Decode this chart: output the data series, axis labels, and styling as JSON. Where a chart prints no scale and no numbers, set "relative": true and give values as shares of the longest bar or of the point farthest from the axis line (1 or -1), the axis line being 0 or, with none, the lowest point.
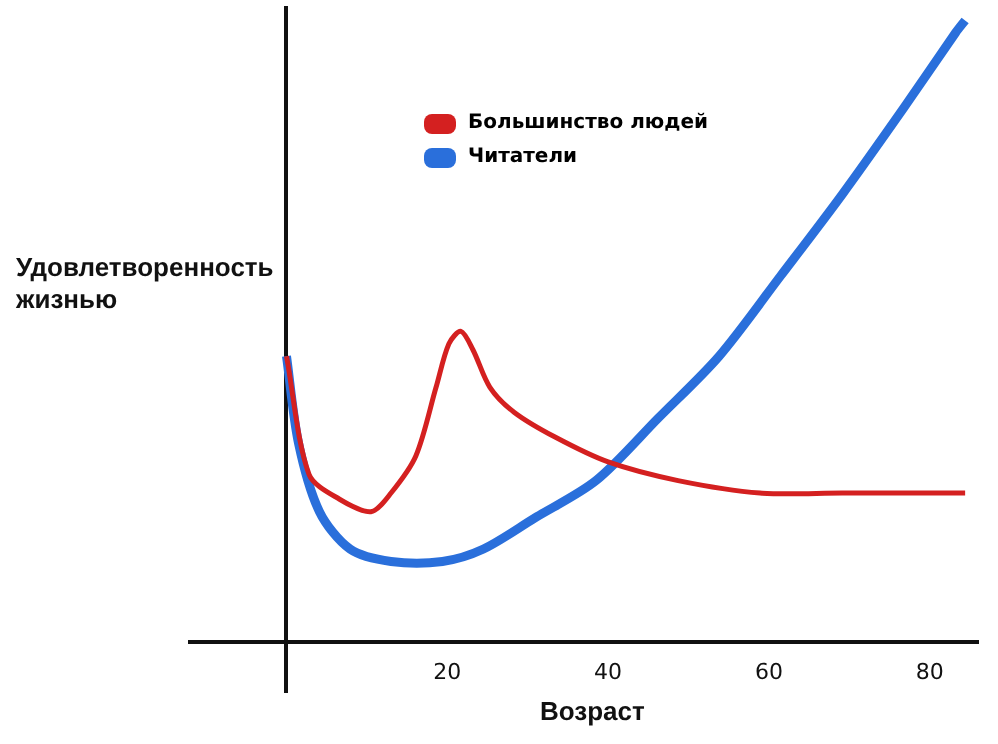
{
  "chart_data": {
    "type": "line",
    "relative": true,
    "xlabel": "Возраст",
    "ylabel": "Удовлетворенность жизнью",
    "xlim": [
      -12,
      86
    ],
    "xticks": [
      20,
      40,
      60,
      80
    ],
    "legend": "top",
    "grid": false,
    "marker": "none",
    "line_style": "solid",
    "series": [
      {
        "name": "Большинство людей",
        "color": "#d42020",
        "x": [
          0,
          2.8,
          6.6,
          10.5,
          13,
          16.1,
          18.6,
          20.2,
          21.7,
          23.2,
          25.3,
          28.3,
          33.4,
          40,
          48.7,
          58.9,
          69.1,
          84.4
        ],
        "values": [
          0.46,
          0.27,
          0.23,
          0.21,
          0.24,
          0.3,
          0.41,
          0.48,
          0.5,
          0.47,
          0.41,
          0.37,
          0.33,
          0.29,
          0.26,
          0.24,
          0.24,
          0.24
        ]
      },
      {
        "name": "Читатели",
        "color": "#2a6fdb",
        "x": [
          0,
          1.5,
          4.1,
          7.9,
          13,
          19.4,
          24.5,
          30.9,
          38.5,
          46.2,
          53.8,
          61.5,
          69.1,
          76.8,
          83.2,
          84.4
        ],
        "values": [
          0.46,
          0.32,
          0.21,
          0.15,
          0.13,
          0.13,
          0.15,
          0.2,
          0.26,
          0.36,
          0.46,
          0.59,
          0.72,
          0.86,
          0.98,
          1
        ]
      }
    ]
  }
}
